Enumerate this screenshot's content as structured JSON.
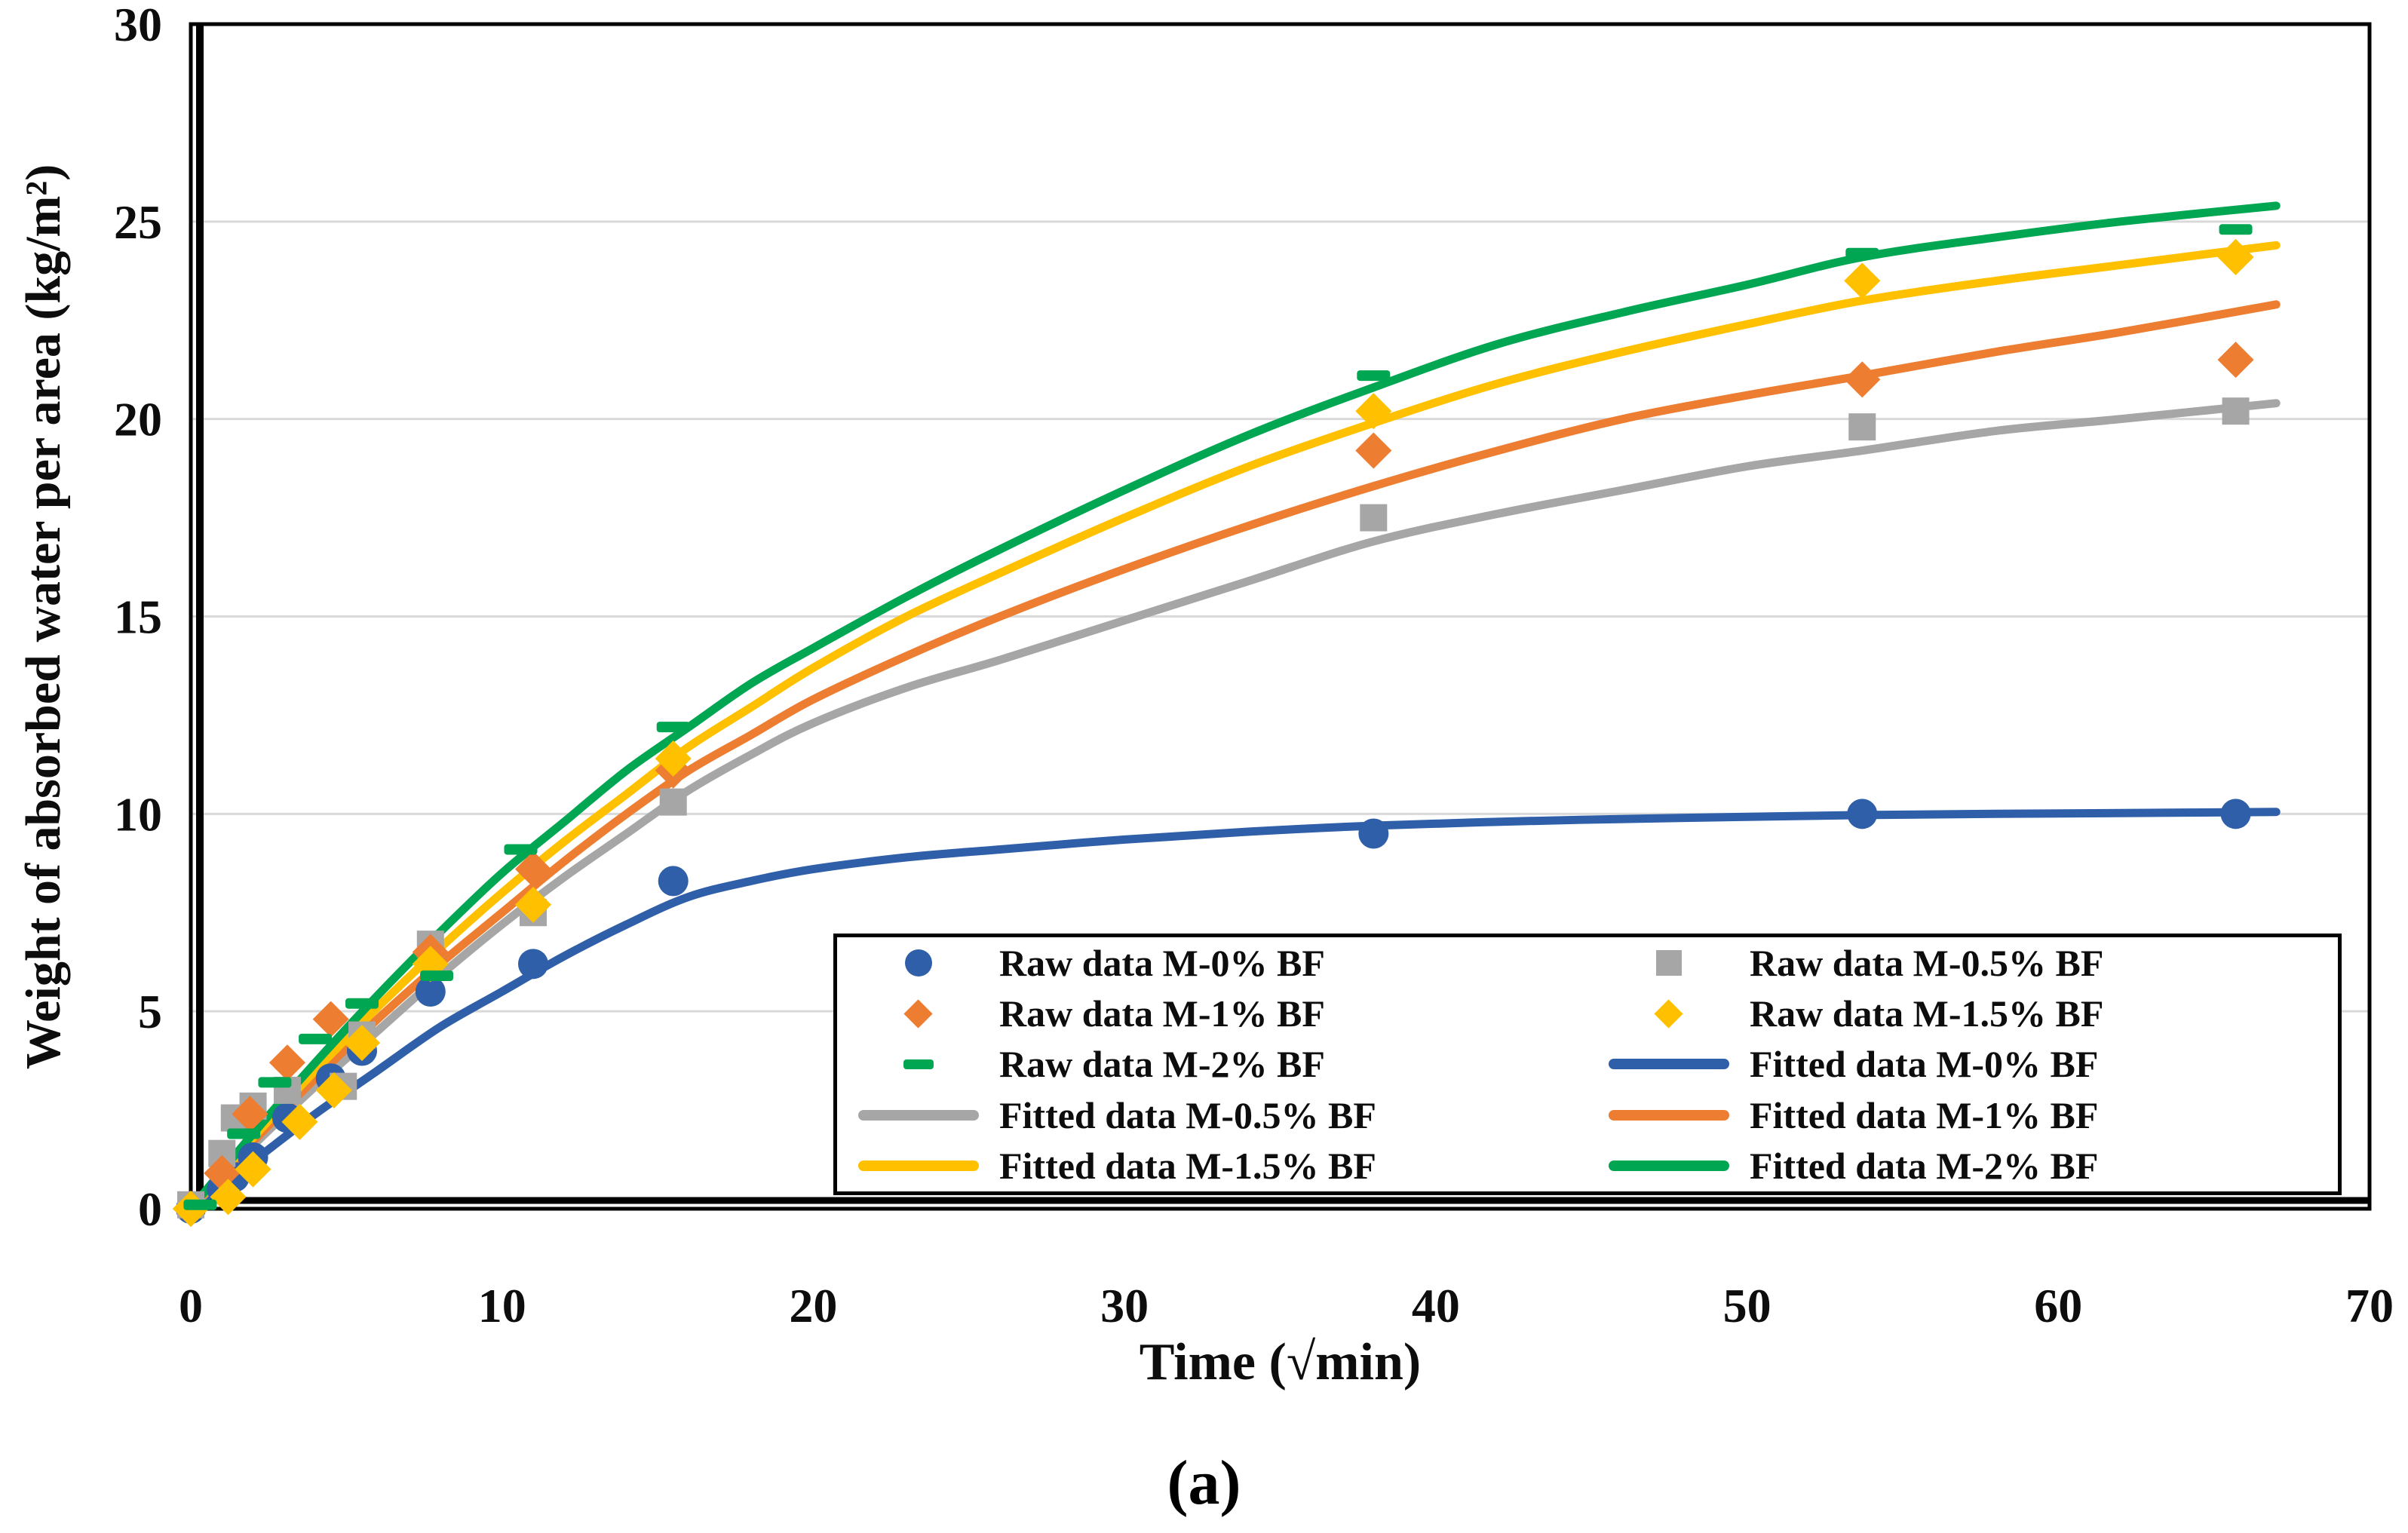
{
  "figure": {
    "caption": "(a)"
  },
  "colors": {
    "blue": "#2F5FA9",
    "gray": "#A6A6A6",
    "orange": "#ED7D31",
    "yellow": "#FFC000",
    "green": "#00A651",
    "grid": "#D9D9D9",
    "axis": "#000000",
    "text": "#0d0d0d"
  },
  "chart_data": {
    "type": "scatter",
    "title": "",
    "xlabel": "Time (√min)",
    "ylabel": "Weight of absorbed water per area (kg/m²)",
    "xlim": [
      0,
      70
    ],
    "ylim": [
      0,
      30
    ],
    "x_ticks": [
      0,
      10,
      20,
      30,
      40,
      50,
      60,
      70
    ],
    "y_ticks": [
      0,
      5,
      10,
      15,
      20,
      25,
      30
    ],
    "grid": "horizontal-only",
    "legend_position": "inside-bottom-right",
    "series": [
      {
        "name": "Raw data M-0% BF",
        "kind": "raw",
        "marker": "circle",
        "color": "blue",
        "points": [
          [
            0,
            0
          ],
          [
            1,
            0.5
          ],
          [
            1.4,
            0.8
          ],
          [
            2,
            1.3
          ],
          [
            3.1,
            2.3
          ],
          [
            4.5,
            3.3
          ],
          [
            5.5,
            4.0
          ],
          [
            7.7,
            5.5
          ],
          [
            11,
            6.2
          ],
          [
            15.5,
            8.3
          ],
          [
            38,
            9.5
          ],
          [
            53.7,
            10.0
          ],
          [
            65.7,
            10.0
          ]
        ]
      },
      {
        "name": "Raw data M-0.5% BF",
        "kind": "raw",
        "marker": "square",
        "color": "gray",
        "points": [
          [
            0,
            0.1
          ],
          [
            1,
            1.4
          ],
          [
            1.4,
            2.3
          ],
          [
            2,
            2.6
          ],
          [
            3.1,
            3.0
          ],
          [
            4.9,
            3.1
          ],
          [
            5.5,
            4.4
          ],
          [
            7.7,
            6.7
          ],
          [
            11,
            7.5
          ],
          [
            15.5,
            10.3
          ],
          [
            38,
            17.5
          ],
          [
            53.7,
            19.8
          ],
          [
            65.7,
            20.2
          ]
        ]
      },
      {
        "name": "Raw data M-1% BF",
        "kind": "raw",
        "marker": "diamond",
        "color": "orange",
        "points": [
          [
            0,
            0
          ],
          [
            1,
            0.9
          ],
          [
            1.9,
            2.4
          ],
          [
            3.1,
            3.7
          ],
          [
            4.5,
            4.8
          ],
          [
            7.7,
            6.5
          ],
          [
            11,
            8.6
          ],
          [
            15.5,
            11.1
          ],
          [
            38,
            19.2
          ],
          [
            53.7,
            21.0
          ],
          [
            65.7,
            21.5
          ]
        ]
      },
      {
        "name": "Raw data M-1.5% BF",
        "kind": "raw",
        "marker": "diamond",
        "color": "yellow",
        "points": [
          [
            0,
            0
          ],
          [
            1.2,
            0.3
          ],
          [
            2,
            1.0
          ],
          [
            3.5,
            2.2
          ],
          [
            4.6,
            3.0
          ],
          [
            5.5,
            4.2
          ],
          [
            7.7,
            6.2
          ],
          [
            11,
            7.7
          ],
          [
            15.5,
            11.4
          ],
          [
            38,
            20.2
          ],
          [
            53.7,
            23.5
          ],
          [
            65.7,
            24.1
          ]
        ]
      },
      {
        "name": "Raw data M-2% BF",
        "kind": "raw",
        "marker": "dash",
        "color": "green",
        "points": [
          [
            0.3,
            0.1
          ],
          [
            1.7,
            1.9
          ],
          [
            2.7,
            3.2
          ],
          [
            4,
            4.3
          ],
          [
            5.5,
            5.2
          ],
          [
            7.9,
            5.9
          ],
          [
            10.6,
            9.1
          ],
          [
            15.5,
            12.2
          ],
          [
            38,
            21.1
          ],
          [
            53.7,
            24.2
          ],
          [
            65.7,
            24.8
          ]
        ]
      },
      {
        "name": "Fitted data M-0% BF",
        "kind": "fitted",
        "color": "blue",
        "points": [
          [
            0,
            0
          ],
          [
            2,
            1.2
          ],
          [
            4,
            2.4
          ],
          [
            6,
            3.5
          ],
          [
            8,
            4.6
          ],
          [
            10,
            5.5
          ],
          [
            12,
            6.4
          ],
          [
            14,
            7.2
          ],
          [
            16,
            7.9
          ],
          [
            18,
            8.3
          ],
          [
            20,
            8.6
          ],
          [
            23,
            8.9
          ],
          [
            26,
            9.1
          ],
          [
            30,
            9.35
          ],
          [
            34,
            9.55
          ],
          [
            38,
            9.7
          ],
          [
            43,
            9.82
          ],
          [
            48,
            9.9
          ],
          [
            53.7,
            9.97
          ],
          [
            58,
            10.0
          ],
          [
            62,
            10.02
          ],
          [
            67,
            10.05
          ]
        ]
      },
      {
        "name": "Fitted data M-0.5% BF",
        "kind": "fitted",
        "color": "gray",
        "points": [
          [
            0,
            0
          ],
          [
            2,
            1.6
          ],
          [
            4,
            3.1
          ],
          [
            6,
            4.5
          ],
          [
            8,
            5.9
          ],
          [
            10,
            7.2
          ],
          [
            12,
            8.4
          ],
          [
            14,
            9.5
          ],
          [
            16,
            10.6
          ],
          [
            18,
            11.5
          ],
          [
            20,
            12.3
          ],
          [
            23,
            13.2
          ],
          [
            26,
            13.9
          ],
          [
            30,
            14.9
          ],
          [
            34,
            15.9
          ],
          [
            38,
            16.9
          ],
          [
            42,
            17.6
          ],
          [
            46,
            18.2
          ],
          [
            50,
            18.8
          ],
          [
            53.7,
            19.2
          ],
          [
            58,
            19.7
          ],
          [
            62,
            20.0
          ],
          [
            67,
            20.4
          ]
        ]
      },
      {
        "name": "Fitted data M-1% BF",
        "kind": "fitted",
        "color": "orange",
        "points": [
          [
            0,
            0
          ],
          [
            2,
            1.7
          ],
          [
            4,
            3.3
          ],
          [
            6,
            4.8
          ],
          [
            8,
            6.2
          ],
          [
            10,
            7.5
          ],
          [
            12,
            8.8
          ],
          [
            14,
            10.0
          ],
          [
            16,
            11.1
          ],
          [
            18,
            12.0
          ],
          [
            20,
            12.9
          ],
          [
            23,
            14.0
          ],
          [
            26,
            15.0
          ],
          [
            30,
            16.2
          ],
          [
            34,
            17.3
          ],
          [
            38,
            18.3
          ],
          [
            42,
            19.2
          ],
          [
            46,
            20.0
          ],
          [
            50,
            20.6
          ],
          [
            53.7,
            21.1
          ],
          [
            58,
            21.7
          ],
          [
            62,
            22.2
          ],
          [
            67,
            22.9
          ]
        ]
      },
      {
        "name": "Fitted data M-1.5% BF",
        "kind": "fitted",
        "color": "yellow",
        "points": [
          [
            0,
            0
          ],
          [
            2,
            1.8
          ],
          [
            4,
            3.5
          ],
          [
            6,
            5.1
          ],
          [
            8,
            6.6
          ],
          [
            10,
            8.0
          ],
          [
            12,
            9.3
          ],
          [
            14,
            10.5
          ],
          [
            16,
            11.7
          ],
          [
            18,
            12.7
          ],
          [
            20,
            13.7
          ],
          [
            23,
            15.0
          ],
          [
            26,
            16.1
          ],
          [
            30,
            17.5
          ],
          [
            34,
            18.8
          ],
          [
            38,
            19.9
          ],
          [
            42,
            20.9
          ],
          [
            46,
            21.7
          ],
          [
            50,
            22.4
          ],
          [
            53.7,
            23.0
          ],
          [
            58,
            23.5
          ],
          [
            62,
            23.9
          ],
          [
            67,
            24.4
          ]
        ]
      },
      {
        "name": "Fitted data M-2% BF",
        "kind": "fitted",
        "color": "green",
        "points": [
          [
            0,
            0
          ],
          [
            2,
            1.9
          ],
          [
            4,
            3.7
          ],
          [
            6,
            5.4
          ],
          [
            8,
            7.0
          ],
          [
            10,
            8.5
          ],
          [
            12,
            9.8
          ],
          [
            14,
            11.1
          ],
          [
            16,
            12.2
          ],
          [
            18,
            13.3
          ],
          [
            20,
            14.2
          ],
          [
            23,
            15.5
          ],
          [
            26,
            16.7
          ],
          [
            30,
            18.2
          ],
          [
            34,
            19.6
          ],
          [
            38,
            20.8
          ],
          [
            42,
            21.9
          ],
          [
            46,
            22.7
          ],
          [
            50,
            23.4
          ],
          [
            53.7,
            24.1
          ],
          [
            58,
            24.6
          ],
          [
            62,
            25.0
          ],
          [
            67,
            25.4
          ]
        ]
      }
    ]
  },
  "legend": {
    "entries": [
      {
        "label": "Raw data M-0% BF",
        "marker": "circle",
        "color": "blue"
      },
      {
        "label": "Raw data M-0.5% BF",
        "marker": "square",
        "color": "gray"
      },
      {
        "label": "Raw data M-1% BF",
        "marker": "diamond",
        "color": "orange"
      },
      {
        "label": "Raw data M-1.5% BF",
        "marker": "diamond",
        "color": "yellow"
      },
      {
        "label": "Raw data M-2% BF",
        "marker": "dash",
        "color": "green"
      },
      {
        "label": "Fitted data M-0% BF",
        "marker": "line",
        "color": "blue"
      },
      {
        "label": "Fitted data M-0.5% BF",
        "marker": "line",
        "color": "gray"
      },
      {
        "label": "Fitted data M-1% BF",
        "marker": "line",
        "color": "orange"
      },
      {
        "label": "Fitted data M-1.5% BF",
        "marker": "line",
        "color": "yellow"
      },
      {
        "label": "Fitted data M-2% BF",
        "marker": "line",
        "color": "green"
      }
    ]
  }
}
